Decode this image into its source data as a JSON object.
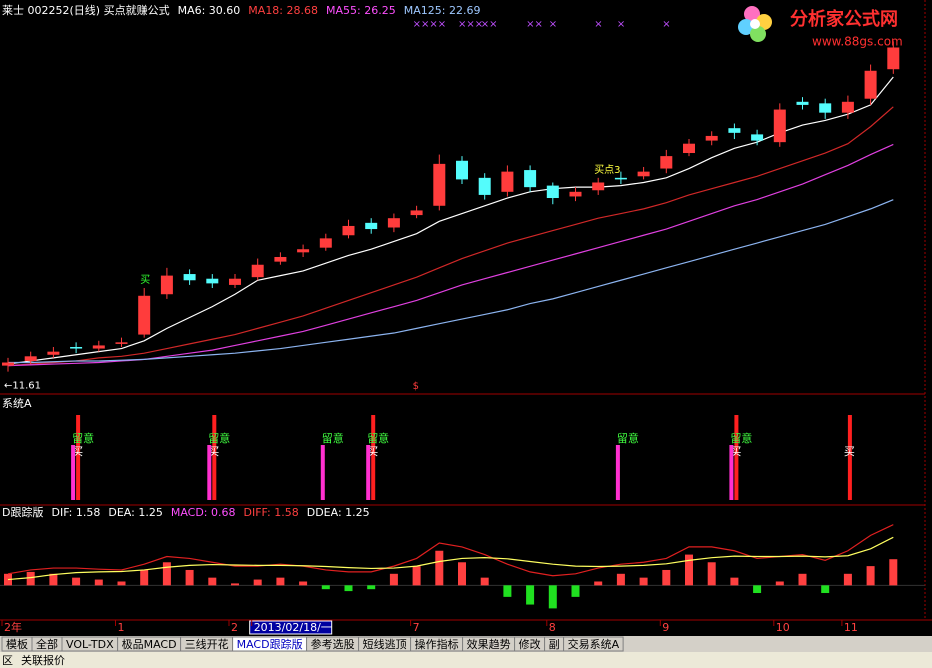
{
  "ui": {
    "header": [
      {
        "text": "莱士 002252(日线) 买点就赚公式",
        "color": "#ffffff"
      },
      {
        "text": "MA6: 30.60",
        "color": "#ffffff"
      },
      {
        "text": "MA18: 28.68",
        "color": "#ff4040"
      },
      {
        "text": "MA55: 26.25",
        "color": "#ff50ff"
      },
      {
        "text": "MA125: 22.69",
        "color": "#9ec8ff"
      }
    ],
    "signal_title": "系统A",
    "macd_header": [
      {
        "text": "D跟踪版",
        "color": "#ffffff"
      },
      {
        "text": "DIF: 1.58",
        "color": "#ffffff"
      },
      {
        "text": "DEA: 1.25",
        "color": "#ffffff"
      },
      {
        "text": "MACD: 0.68",
        "color": "#ff50ff"
      },
      {
        "text": "DIFF: 1.58",
        "color": "#ff4040"
      },
      {
        "text": "DDEA: 1.25",
        "color": "#ffffff"
      }
    ],
    "logo": {
      "title": "分析家公式网",
      "url": "www.88gs.com"
    },
    "tabs": [
      "模板",
      "全部",
      "VOL-TDX",
      "极品MACD",
      "三线开花",
      "MACD跟踪版",
      "参考选股",
      "短线逃顶",
      "操作指标",
      "效果趋势",
      "修改",
      "副",
      "交易系统A"
    ],
    "active_tab": 5,
    "status": [
      "区",
      "关联报价"
    ]
  },
  "chart_data": [
    {
      "type": "candlestick",
      "ylim": [
        10.3,
        34.4
      ],
      "open": [
        12.0,
        12.3,
        12.7,
        13.2,
        13.1,
        13.4,
        14.0,
        16.6,
        17.9,
        17.6,
        17.2,
        17.7,
        18.7,
        19.3,
        19.6,
        20.4,
        21.2,
        20.9,
        21.7,
        22.3,
        25.2,
        24.1,
        23.2,
        24.6,
        23.6,
        22.9,
        23.3,
        24.1,
        24.2,
        24.7,
        25.7,
        26.5,
        27.3,
        26.9,
        26.4,
        29.0,
        28.9,
        28.3,
        29.2,
        31.1
      ],
      "high": [
        12.5,
        12.9,
        13.2,
        13.5,
        13.6,
        13.8,
        17.0,
        18.3,
        18.2,
        17.9,
        17.9,
        18.9,
        19.3,
        19.8,
        20.5,
        21.4,
        21.5,
        21.8,
        22.3,
        25.6,
        25.5,
        24.4,
        24.9,
        24.9,
        23.8,
        23.5,
        24.1,
        24.5,
        24.8,
        25.9,
        26.6,
        27.1,
        27.6,
        27.2,
        28.9,
        29.3,
        29.2,
        29.4,
        31.4,
        32.9
      ],
      "low": [
        11.61,
        12.1,
        12.5,
        12.8,
        12.9,
        13.2,
        13.8,
        16.3,
        17.2,
        17.0,
        17.0,
        17.5,
        18.5,
        19.0,
        19.4,
        20.2,
        20.5,
        20.6,
        21.5,
        22.0,
        23.7,
        22.7,
        22.9,
        23.2,
        22.4,
        22.6,
        23.0,
        23.7,
        24.0,
        24.4,
        25.5,
        26.2,
        26.6,
        26.2,
        26.1,
        28.5,
        27.9,
        27.9,
        28.8,
        30.8
      ],
      "close": [
        12.2,
        12.6,
        12.9,
        13.1,
        13.3,
        13.5,
        16.5,
        17.8,
        17.5,
        17.3,
        17.6,
        18.5,
        19.0,
        19.5,
        20.2,
        21.0,
        20.8,
        21.5,
        22.0,
        25.0,
        24.0,
        23.0,
        24.5,
        23.5,
        22.8,
        23.2,
        23.8,
        24.0,
        24.5,
        25.5,
        26.3,
        26.8,
        27.0,
        26.5,
        28.5,
        28.8,
        28.3,
        29.0,
        31.0,
        32.5
      ],
      "up_color": "#ff3c3c",
      "down_color": "#54fcfc",
      "series": [
        {
          "color": "#ffffff",
          "values": [
            12.1,
            12.3,
            12.5,
            12.7,
            12.9,
            13.1,
            13.6,
            14.4,
            15.1,
            15.8,
            16.6,
            17.5,
            17.8,
            18.1,
            18.6,
            19.1,
            19.5,
            20.0,
            20.5,
            21.3,
            21.8,
            22.3,
            22.8,
            23.2,
            23.4,
            23.5,
            23.5,
            23.6,
            23.8,
            24.1,
            24.7,
            25.4,
            26.0,
            26.4,
            27.0,
            27.5,
            27.8,
            28.2,
            28.8,
            30.6
          ]
        },
        {
          "color": "#d02828",
          "values": [
            12.0,
            12.1,
            12.2,
            12.3,
            12.5,
            12.6,
            12.8,
            13.1,
            13.4,
            13.7,
            14.0,
            14.4,
            14.8,
            15.2,
            15.7,
            16.2,
            16.7,
            17.2,
            17.7,
            18.3,
            18.9,
            19.4,
            19.9,
            20.3,
            20.7,
            21.1,
            21.5,
            21.8,
            22.1,
            22.5,
            23.0,
            23.4,
            23.8,
            24.2,
            24.7,
            25.2,
            25.7,
            26.3,
            27.4,
            28.68
          ]
        },
        {
          "color": "#e040e0",
          "values": [
            12.0,
            12.05,
            12.1,
            12.15,
            12.2,
            12.3,
            12.4,
            12.6,
            12.8,
            13.0,
            13.3,
            13.6,
            13.9,
            14.2,
            14.6,
            15.0,
            15.4,
            15.8,
            16.2,
            16.7,
            17.2,
            17.6,
            18.0,
            18.4,
            18.8,
            19.2,
            19.6,
            20.0,
            20.4,
            20.8,
            21.3,
            21.8,
            22.3,
            22.7,
            23.2,
            23.7,
            24.3,
            24.9,
            25.6,
            26.25
          ]
        },
        {
          "color": "#8cb4f0",
          "values": [
            12.2,
            12.2,
            12.25,
            12.3,
            12.3,
            12.35,
            12.4,
            12.5,
            12.6,
            12.7,
            12.8,
            12.95,
            13.1,
            13.3,
            13.5,
            13.7,
            13.9,
            14.1,
            14.4,
            14.7,
            15.0,
            15.3,
            15.6,
            16.0,
            16.3,
            16.7,
            17.1,
            17.5,
            17.9,
            18.3,
            18.7,
            19.1,
            19.5,
            19.9,
            20.3,
            20.7,
            21.1,
            21.6,
            22.1,
            22.69
          ]
        }
      ],
      "annotations": [
        {
          "text": "××××",
          "at": 18,
          "color": "#c050ff",
          "place": "top"
        },
        {
          "text": "×××",
          "at": 20,
          "color": "#c050ff",
          "place": "top"
        },
        {
          "text": "××",
          "at": 21,
          "color": "#c050ff",
          "place": "top"
        },
        {
          "text": "××",
          "at": 23,
          "color": "#c050ff",
          "place": "top"
        },
        {
          "text": "×",
          "at": 24,
          "color": "#c050ff",
          "place": "top"
        },
        {
          "text": "×",
          "at": 26,
          "color": "#c050ff",
          "place": "top"
        },
        {
          "text": "×",
          "at": 27,
          "color": "#c050ff",
          "place": "top"
        },
        {
          "text": "×",
          "at": 29,
          "color": "#c050ff",
          "place": "top"
        },
        {
          "text": "←11.61",
          "at": 0,
          "color": "#ffffff",
          "place": "low"
        },
        {
          "text": "$",
          "at": 18,
          "color": "#ff3c3c",
          "place": "bottom"
        },
        {
          "text": "买",
          "at": 6,
          "color": "#30ff30",
          "place": "mid"
        },
        {
          "text": "买点3",
          "at": 26,
          "color": "#ffff40",
          "place": "mid"
        }
      ]
    },
    {
      "type": "bar",
      "ylim": [
        0,
        100
      ],
      "series": [
        {
          "color": "#ff2020",
          "label_color": "#ffffff",
          "values": [
            null,
            null,
            null,
            85,
            null,
            null,
            null,
            null,
            null,
            85,
            null,
            null,
            null,
            null,
            null,
            null,
            85,
            null,
            null,
            null,
            null,
            null,
            null,
            null,
            null,
            null,
            null,
            null,
            null,
            null,
            null,
            null,
            85,
            null,
            null,
            null,
            null,
            85,
            null,
            null
          ],
          "labels": [
            null,
            null,
            null,
            "买",
            null,
            null,
            null,
            null,
            null,
            "买",
            null,
            null,
            null,
            null,
            null,
            null,
            "买",
            null,
            null,
            null,
            null,
            null,
            null,
            null,
            null,
            null,
            null,
            null,
            null,
            null,
            null,
            null,
            "买",
            null,
            null,
            null,
            null,
            "买",
            null,
            null
          ]
        },
        {
          "color": "#ff30d0",
          "label_color": "#40ff40",
          "values": [
            null,
            null,
            null,
            55,
            null,
            null,
            null,
            null,
            null,
            55,
            null,
            null,
            null,
            null,
            55,
            null,
            55,
            null,
            null,
            null,
            null,
            null,
            null,
            null,
            null,
            null,
            null,
            55,
            null,
            null,
            null,
            null,
            55,
            null,
            null,
            null,
            null,
            null,
            null,
            null
          ],
          "labels": [
            null,
            null,
            null,
            "留意",
            null,
            null,
            null,
            null,
            null,
            "留意",
            null,
            null,
            null,
            null,
            "留意",
            null,
            "留意",
            null,
            null,
            null,
            null,
            null,
            null,
            null,
            null,
            null,
            null,
            "留意",
            null,
            null,
            null,
            null,
            "留意",
            null,
            null,
            null,
            null,
            null,
            null,
            null
          ]
        }
      ]
    },
    {
      "type": "macd",
      "ylim": [
        -0.85,
        1.7
      ],
      "categories": [
        "2年",
        null,
        null,
        null,
        null,
        "1",
        null,
        null,
        null,
        null,
        "2",
        "2013/02/18/一",
        null,
        null,
        null,
        null,
        null,
        null,
        "7",
        null,
        null,
        null,
        null,
        null,
        "8",
        null,
        null,
        null,
        null,
        "9",
        null,
        null,
        null,
        null,
        "10",
        null,
        null,
        "11",
        null,
        null
      ],
      "cursor_index": 11,
      "values": [
        0.3,
        0.35,
        0.3,
        0.2,
        0.15,
        0.1,
        0.4,
        0.6,
        0.4,
        0.2,
        0.05,
        0.15,
        0.2,
        0.1,
        -0.1,
        -0.15,
        -0.1,
        0.3,
        0.5,
        0.9,
        0.6,
        0.2,
        -0.3,
        -0.5,
        -0.6,
        -0.3,
        0.1,
        0.3,
        0.2,
        0.4,
        0.8,
        0.6,
        0.2,
        -0.2,
        0.1,
        0.3,
        -0.2,
        0.3,
        0.5,
        0.68
      ],
      "pos_color": "#ff4040",
      "neg_color": "#20e020",
      "series": [
        {
          "color": "#e02020",
          "values": [
            0.3,
            0.4,
            0.45,
            0.45,
            0.42,
            0.4,
            0.55,
            0.75,
            0.7,
            0.6,
            0.5,
            0.5,
            0.55,
            0.5,
            0.4,
            0.35,
            0.35,
            0.5,
            0.7,
            1.1,
            1.0,
            0.8,
            0.55,
            0.35,
            0.25,
            0.3,
            0.45,
            0.55,
            0.6,
            0.7,
            1.0,
            1.0,
            0.9,
            0.7,
            0.75,
            0.8,
            0.65,
            0.9,
            1.3,
            1.58
          ]
        },
        {
          "color": "#ffff60",
          "values": [
            0.15,
            0.2,
            0.28,
            0.33,
            0.35,
            0.36,
            0.4,
            0.47,
            0.52,
            0.54,
            0.53,
            0.52,
            0.52,
            0.51,
            0.49,
            0.46,
            0.44,
            0.45,
            0.5,
            0.62,
            0.7,
            0.72,
            0.69,
            0.62,
            0.55,
            0.5,
            0.49,
            0.5,
            0.52,
            0.56,
            0.65,
            0.72,
            0.76,
            0.75,
            0.75,
            0.76,
            0.74,
            0.77,
            0.95,
            1.25
          ]
        }
      ]
    }
  ]
}
